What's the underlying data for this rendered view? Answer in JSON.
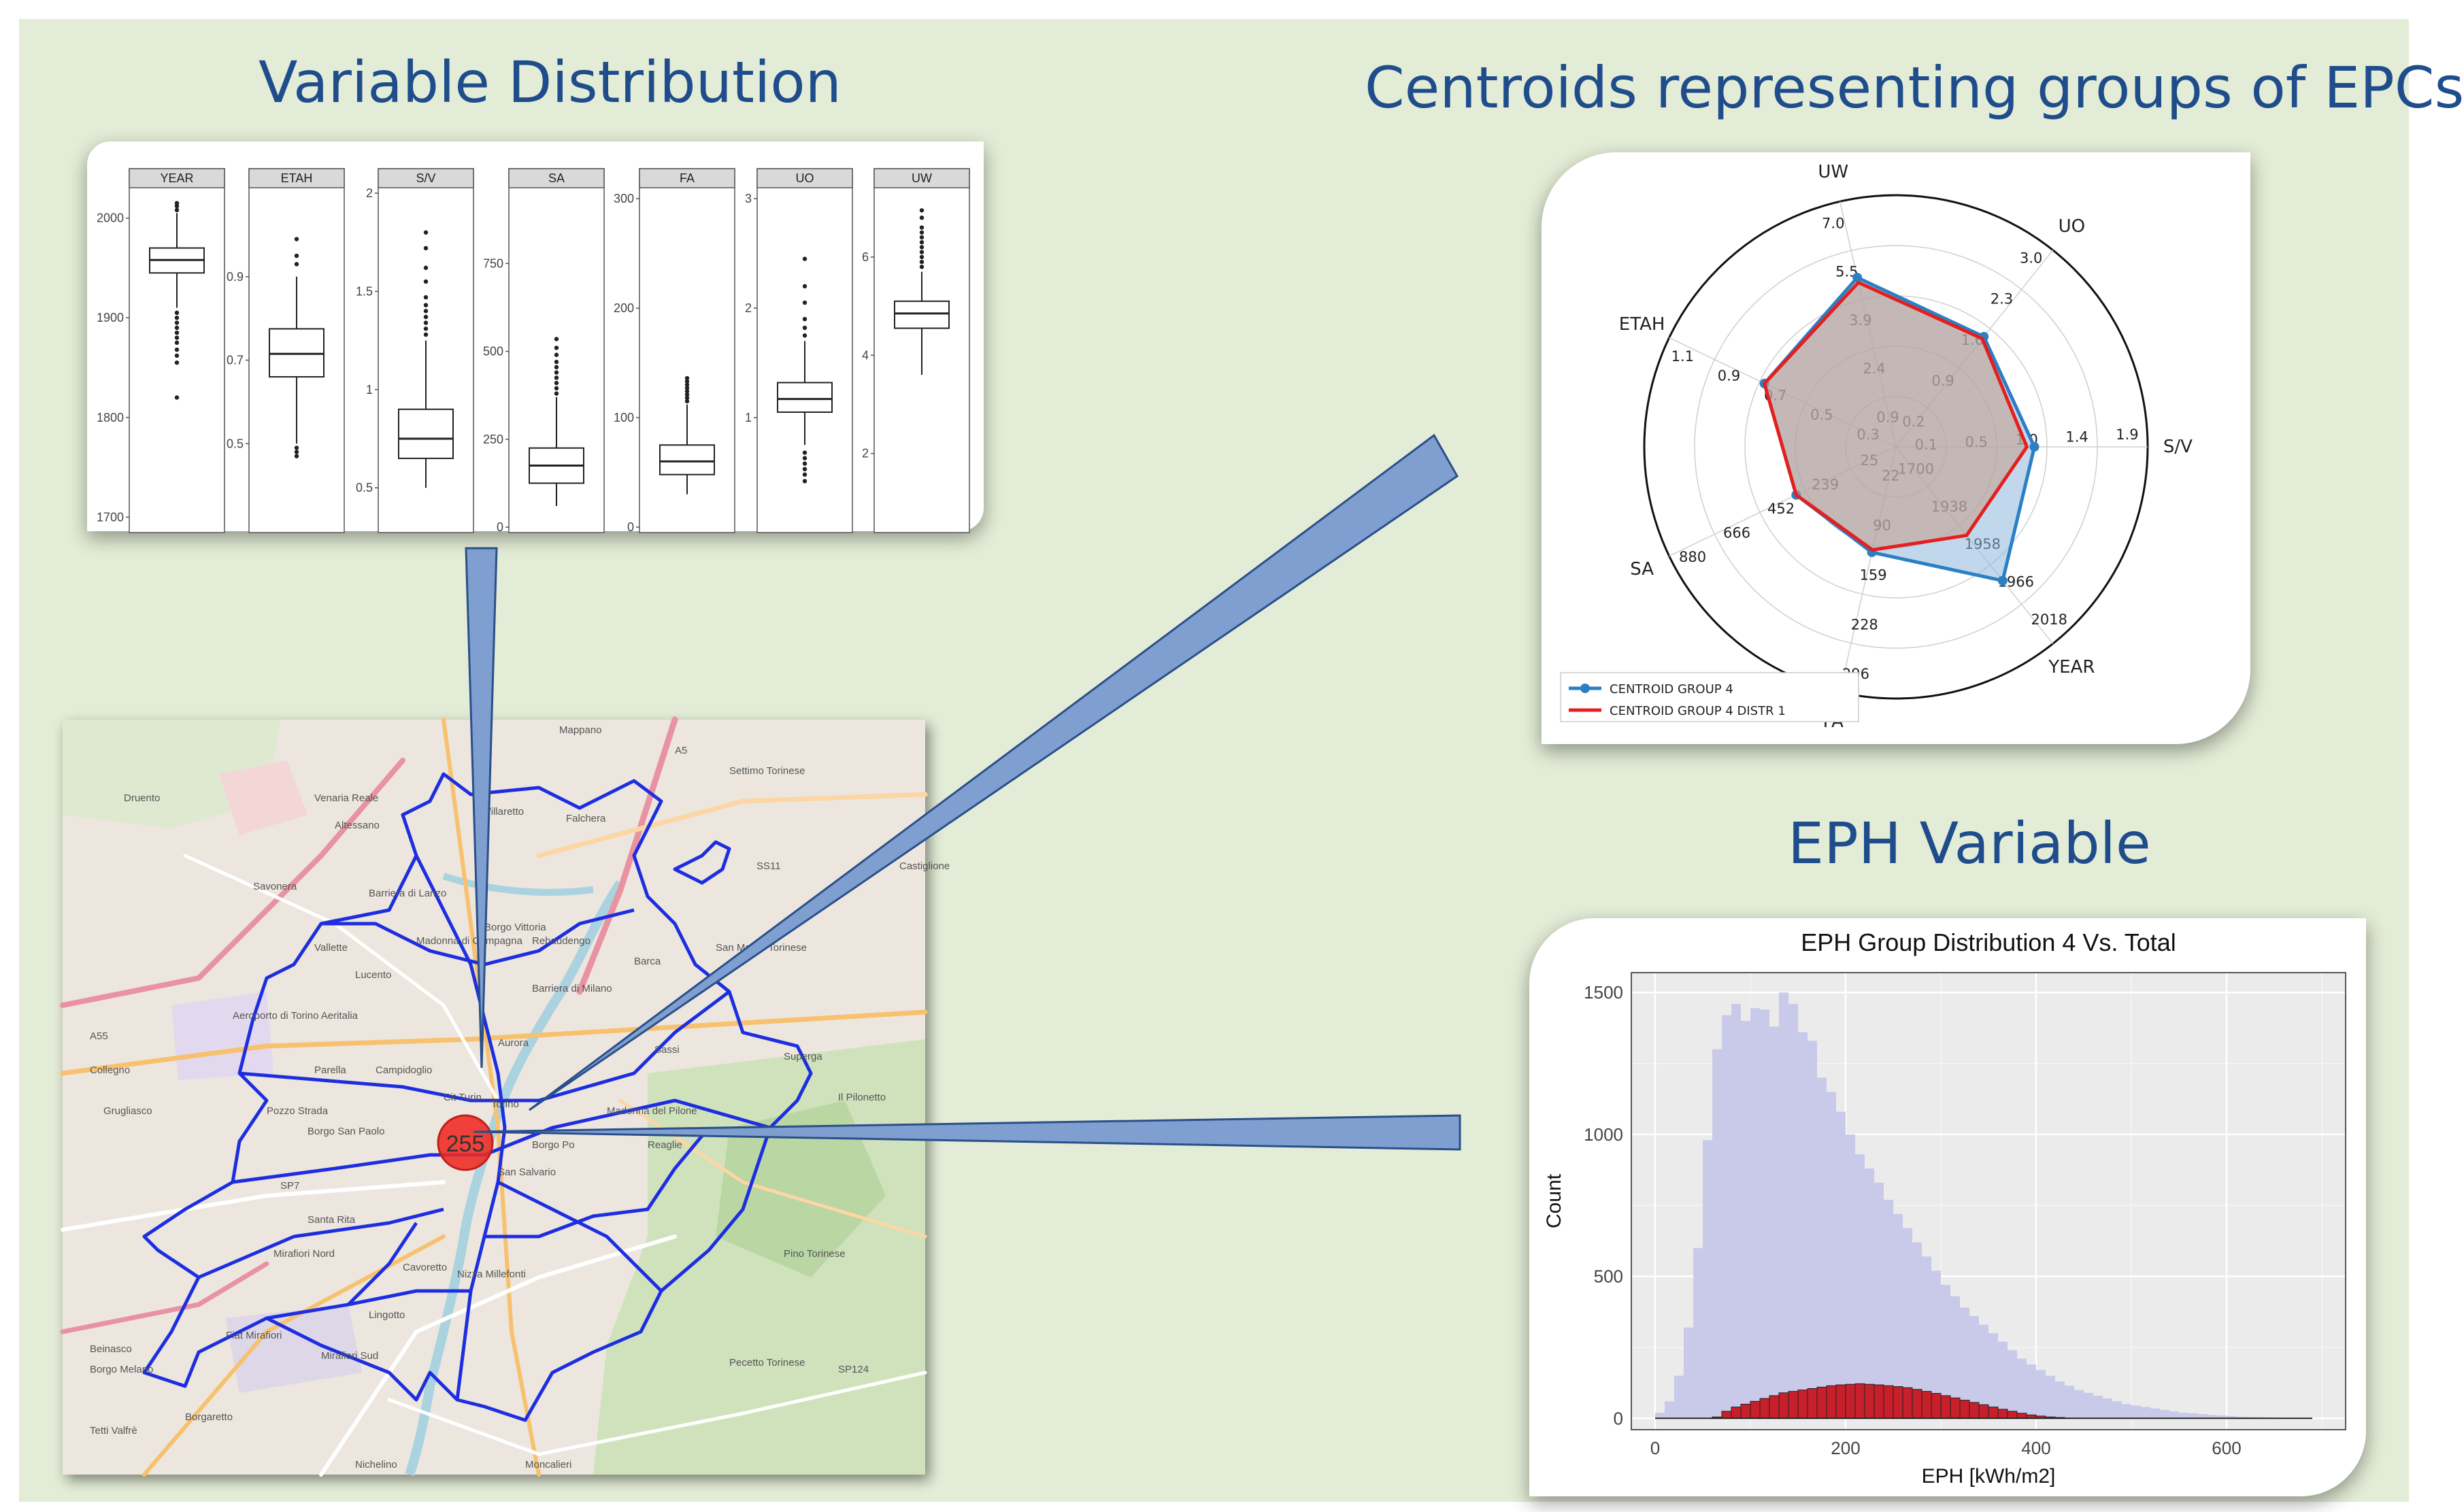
{
  "titles": {
    "variable_distribution": "Variable Distribution",
    "centroids": "Centroids representing groups of EPCs",
    "eph": "EPH Variable"
  },
  "colors": {
    "slide_bg": "#e3ecd6",
    "title": "#1f4d8c",
    "beam_fill": "#7f9fd0",
    "beam_stroke": "#2a4f8a",
    "centroid_group": "#2b7fc4",
    "centroid_distr": "#e41f1f",
    "hist_total": "#c9c9ea",
    "hist_group": "#c8202a",
    "district_boundary": "#1d2ee0",
    "cluster_marker": "#ef2a22"
  },
  "map": {
    "cluster_count": "255",
    "place_labels": [
      "Mappano",
      "Settimo Torinese",
      "Venaria Reale",
      "Druento",
      "Altessano",
      "Villaretto",
      "Falchera",
      "Savonera",
      "Barriera di Lanzo",
      "Vallette",
      "Lucento",
      "Madonna di Campagna",
      "Borgo Vittoria",
      "Rebaudengo",
      "Barca",
      "San Mauro Torinese",
      "Barriera di Milano",
      "Collegno",
      "Parella",
      "Campidoglio",
      "Aurora",
      "Sassi",
      "Grugliasco",
      "Pozzo Strada",
      "Cit Turin",
      "Torino",
      "Madonna del Pilone",
      "Borgo San Paolo",
      "Borgo Po",
      "Reaglie",
      "San Salvario",
      "Santa Rita",
      "Mirafiori Nord",
      "Cavoretto",
      "Nizza Millefonti",
      "Pino Torinese",
      "Lingotto",
      "Beinasco",
      "Borgo Melano",
      "Mirafiori Sud",
      "Fiat Mirafiori",
      "Pecetto Torinese",
      "Tetti Valfrè",
      "Borgaretto",
      "Nichelino",
      "Moncalieri",
      "Il Pilonetto",
      "Superga",
      "Aeroporto di Torino Aeritalia",
      "A5",
      "A55",
      "SS11",
      "SP7",
      "SP124",
      "Castiglione"
    ]
  },
  "chart_data": [
    {
      "type": "boxplot",
      "title": "",
      "panels": [
        {
          "name": "YEAR",
          "ylim": [
            1690,
            2025
          ],
          "ticks": [
            1700,
            1800,
            1900,
            2000
          ],
          "q1": 1945,
          "median": 1958,
          "q3": 1970,
          "whisker_low": 1910,
          "whisker_high": 2005,
          "outliers": [
            1820,
            1855,
            1862,
            1868,
            1875,
            1880,
            1885,
            1890,
            1895,
            1900,
            1905,
            2008,
            2012,
            2015
          ]
        },
        {
          "name": "ETAH",
          "ylim": [
            0.3,
            1.1
          ],
          "ticks": [
            0.5,
            0.7,
            0.9
          ],
          "q1": 0.66,
          "median": 0.715,
          "q3": 0.775,
          "whisker_low": 0.5,
          "whisker_high": 0.9,
          "outliers": [
            0.47,
            0.48,
            0.49,
            0.93,
            0.95,
            0.99
          ]
        },
        {
          "name": "S/V",
          "ylim": [
            0.3,
            2.0
          ],
          "ticks": [
            0.5,
            1.0,
            1.5,
            2.0
          ],
          "q1": 0.65,
          "median": 0.75,
          "q3": 0.9,
          "whisker_low": 0.5,
          "whisker_high": 1.25,
          "outliers": [
            1.28,
            1.31,
            1.34,
            1.37,
            1.4,
            1.43,
            1.47,
            1.55,
            1.62,
            1.72,
            1.8
          ]
        },
        {
          "name": "SA",
          "ylim": [
            0,
            950
          ],
          "ticks": [
            0,
            250,
            500,
            750
          ],
          "q1": 125,
          "median": 175,
          "q3": 225,
          "whisker_low": 60,
          "whisker_high": 370,
          "outliers": [
            380,
            395,
            410,
            425,
            440,
            455,
            470,
            490,
            510,
            535
          ]
        },
        {
          "name": "FA",
          "ylim": [
            0,
            305
          ],
          "ticks": [
            0,
            100,
            200,
            300
          ],
          "q1": 48,
          "median": 60,
          "q3": 75,
          "whisker_low": 30,
          "whisker_high": 112,
          "outliers": [
            115,
            118,
            121,
            124,
            127,
            130,
            133,
            136
          ]
        },
        {
          "name": "UO",
          "ylim": [
            0,
            3.05
          ],
          "ticks": [
            1,
            2,
            3
          ],
          "q1": 1.05,
          "median": 1.17,
          "q3": 1.32,
          "whisker_low": 0.75,
          "whisker_high": 1.7,
          "outliers": [
            0.42,
            0.48,
            0.53,
            0.58,
            0.63,
            0.68,
            1.75,
            1.82,
            1.9,
            2.05,
            2.2,
            2.45
          ]
        },
        {
          "name": "UW",
          "ylim": [
            0.5,
            7.3
          ],
          "ticks": [
            2,
            4,
            6
          ],
          "q1": 4.55,
          "median": 4.85,
          "q3": 5.1,
          "whisker_low": 3.6,
          "whisker_high": 5.7,
          "outliers": [
            5.8,
            5.9,
            6.0,
            6.1,
            6.2,
            6.3,
            6.4,
            6.5,
            6.6,
            6.8,
            6.95
          ]
        }
      ]
    },
    {
      "type": "radar",
      "title": "",
      "axes": [
        {
          "name": "S/V",
          "ticks": [
            "0.1",
            "0.5",
            "1.0",
            "1.4",
            "1.9"
          ]
        },
        {
          "name": "UO",
          "ticks": [
            "0.2",
            "0.9",
            "1.6",
            "2.3",
            "3.0"
          ]
        },
        {
          "name": "UW",
          "ticks": [
            "0.9",
            "2.4",
            "3.9",
            "5.5",
            "7.0"
          ]
        },
        {
          "name": "ETAH",
          "ticks": [
            "0.3",
            "0.5",
            "0.7",
            "0.9",
            "1.1"
          ]
        },
        {
          "name": "SA",
          "ticks": [
            "25",
            "239",
            "452",
            "666",
            "880"
          ]
        },
        {
          "name": "FA",
          "ticks": [
            "22",
            "90",
            "159",
            "228",
            "296"
          ]
        },
        {
          "name": "YEAR",
          "ticks": [
            "1700",
            "1938",
            "1958",
            "1966",
            "2018"
          ]
        }
      ],
      "series": [
        {
          "name": "CENTROID GROUP 4",
          "values": [
            0.55,
            0.56,
            0.69,
            0.58,
            0.44,
            0.43,
            0.68
          ]
        },
        {
          "name": "CENTROID GROUP 4 DISTR 1",
          "values": [
            0.52,
            0.55,
            0.67,
            0.58,
            0.44,
            0.42,
            0.45
          ]
        }
      ],
      "legend_position": "bottom-left"
    },
    {
      "type": "histogram",
      "title": "EPH Group Distribution 4 Vs. Total",
      "xlabel": "EPH [kWh/m2]",
      "ylabel": "Count",
      "xlim": [
        -25,
        725
      ],
      "ylim": [
        -40,
        1570
      ],
      "xticks": [
        0,
        200,
        400,
        600
      ],
      "yticks": [
        0,
        500,
        1000,
        1500
      ],
      "grid": true,
      "bin_width": 10,
      "bin_start": 0,
      "series": [
        {
          "name": "Total",
          "values": [
            20,
            60,
            150,
            320,
            600,
            980,
            1300,
            1420,
            1460,
            1400,
            1445,
            1440,
            1380,
            1500,
            1460,
            1360,
            1330,
            1200,
            1150,
            1080,
            1000,
            930,
            880,
            830,
            770,
            720,
            670,
            620,
            570,
            520,
            470,
            430,
            390,
            360,
            330,
            300,
            270,
            240,
            210,
            190,
            170,
            150,
            130,
            115,
            100,
            90,
            80,
            70,
            60,
            50,
            45,
            40,
            35,
            30,
            25,
            20,
            18,
            15,
            12,
            10,
            8,
            6,
            5,
            4,
            3,
            2,
            2,
            1,
            1
          ]
        },
        {
          "name": "Group 4",
          "values": [
            0,
            0,
            0,
            0,
            0,
            0,
            5,
            25,
            40,
            50,
            60,
            70,
            80,
            90,
            95,
            100,
            105,
            110,
            115,
            118,
            120,
            122,
            120,
            118,
            115,
            112,
            108,
            102,
            95,
            88,
            80,
            72,
            64,
            56,
            48,
            40,
            32,
            25,
            18,
            12,
            8,
            5,
            3,
            1,
            0,
            0
          ]
        }
      ]
    }
  ]
}
